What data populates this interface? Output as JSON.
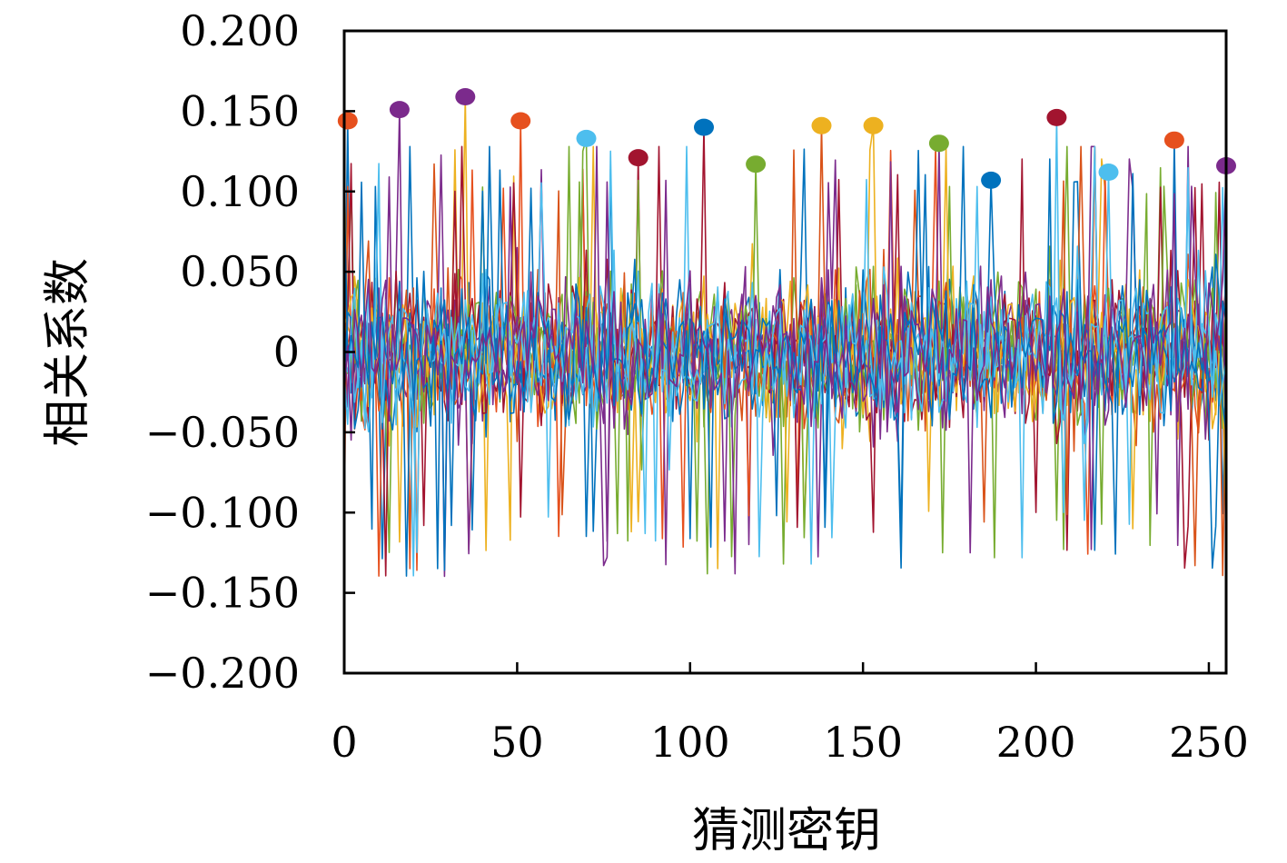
{
  "chart_data": {
    "type": "line",
    "title": "",
    "xlabel": "猜测密钥",
    "ylabel": "相关系数",
    "xlim": [
      0,
      255
    ],
    "ylim": [
      -0.2,
      0.2
    ],
    "grid": false,
    "legend": "none",
    "x_ticks": [
      {
        "value": 0,
        "label": "0"
      },
      {
        "value": 50,
        "label": "50"
      },
      {
        "value": 100,
        "label": "100"
      },
      {
        "value": 150,
        "label": "150"
      },
      {
        "value": 200,
        "label": "200"
      },
      {
        "value": 250,
        "label": "250"
      }
    ],
    "y_ticks": [
      {
        "value": 0.2,
        "label": "0.200"
      },
      {
        "value": 0.15,
        "label": "0.150"
      },
      {
        "value": 0.1,
        "label": "0.100"
      },
      {
        "value": 0.05,
        "label": "0.050"
      },
      {
        "value": 0,
        "label": "0"
      },
      {
        "value": -0.05,
        "label": "−0.050"
      },
      {
        "value": -0.1,
        "label": "−0.100"
      },
      {
        "value": -0.15,
        "label": "−0.150"
      },
      {
        "value": -0.2,
        "label": "−0.200"
      }
    ],
    "series": [
      {
        "color": "#e6501e",
        "peak_x": 1,
        "peak_y": 0.144
      },
      {
        "color": "#7b2a8c",
        "peak_x": 16,
        "peak_y": 0.151
      },
      {
        "color": "#7b2a8c",
        "peak_x": 35,
        "peak_y": 0.159
      },
      {
        "color": "#e6501e",
        "peak_x": 51,
        "peak_y": 0.144
      },
      {
        "color": "#4dbeee",
        "peak_x": 70,
        "peak_y": 0.133
      },
      {
        "color": "#a2142f",
        "peak_x": 85,
        "peak_y": 0.121
      },
      {
        "color": "#0072bd",
        "peak_x": 104,
        "peak_y": 0.14
      },
      {
        "color": "#77ac30",
        "peak_x": 119,
        "peak_y": 0.117
      },
      {
        "color": "#edb120",
        "peak_x": 138,
        "peak_y": 0.141
      },
      {
        "color": "#edb120",
        "peak_x": 153,
        "peak_y": 0.141
      },
      {
        "color": "#77ac30",
        "peak_x": 172,
        "peak_y": 0.13
      },
      {
        "color": "#0072bd",
        "peak_x": 187,
        "peak_y": 0.107
      },
      {
        "color": "#a2142f",
        "peak_x": 206,
        "peak_y": 0.146
      },
      {
        "color": "#4dbeee",
        "peak_x": 221,
        "peak_y": 0.112
      },
      {
        "color": "#e6501e",
        "peak_x": 240,
        "peak_y": 0.132
      },
      {
        "color": "#7b2a8c",
        "peak_x": 255,
        "peak_y": 0.116
      }
    ],
    "noise_colors": [
      "#0072bd",
      "#d95319",
      "#edb120",
      "#7e2f8e",
      "#77ac30",
      "#4dbeee",
      "#a2142f"
    ],
    "noise_amplitude": 0.05,
    "noise_extreme": 0.14
  }
}
